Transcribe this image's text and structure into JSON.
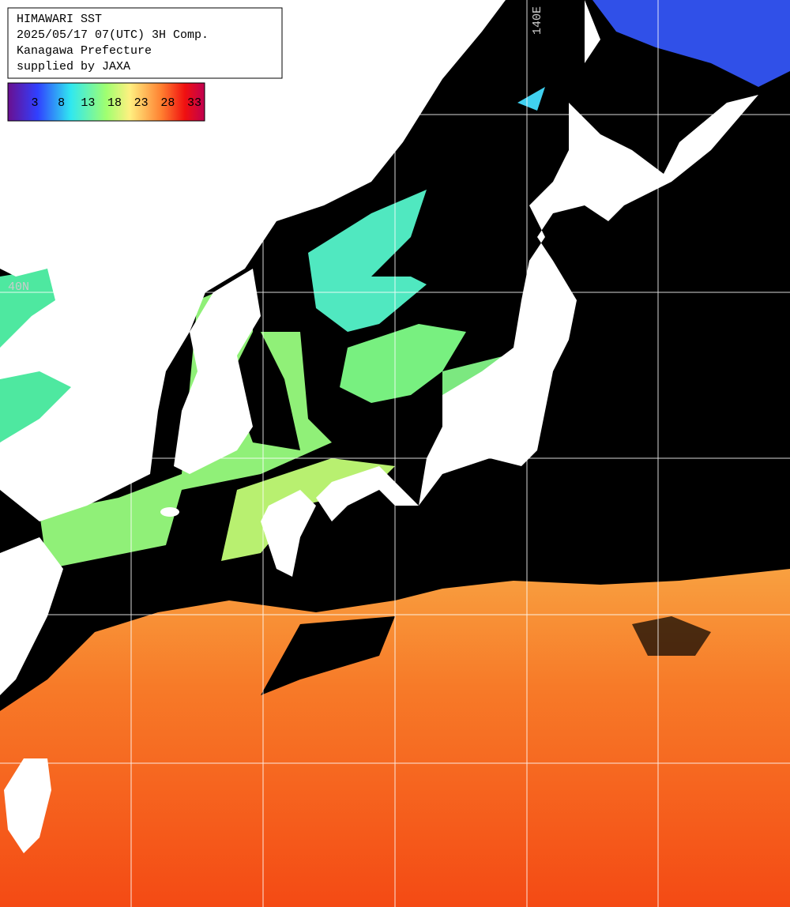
{
  "header": {
    "lines": [
      "HIMAWARI SST",
      "2025/05/17 07(UTC) 3H Comp.",
      "Kanagawa Prefecture",
      "supplied by JAXA"
    ]
  },
  "colorbar": {
    "ticks": [
      3,
      8,
      13,
      18,
      23,
      28,
      33
    ]
  },
  "grid_labels": {
    "longitude": "140E",
    "latitude": "40N"
  }
}
